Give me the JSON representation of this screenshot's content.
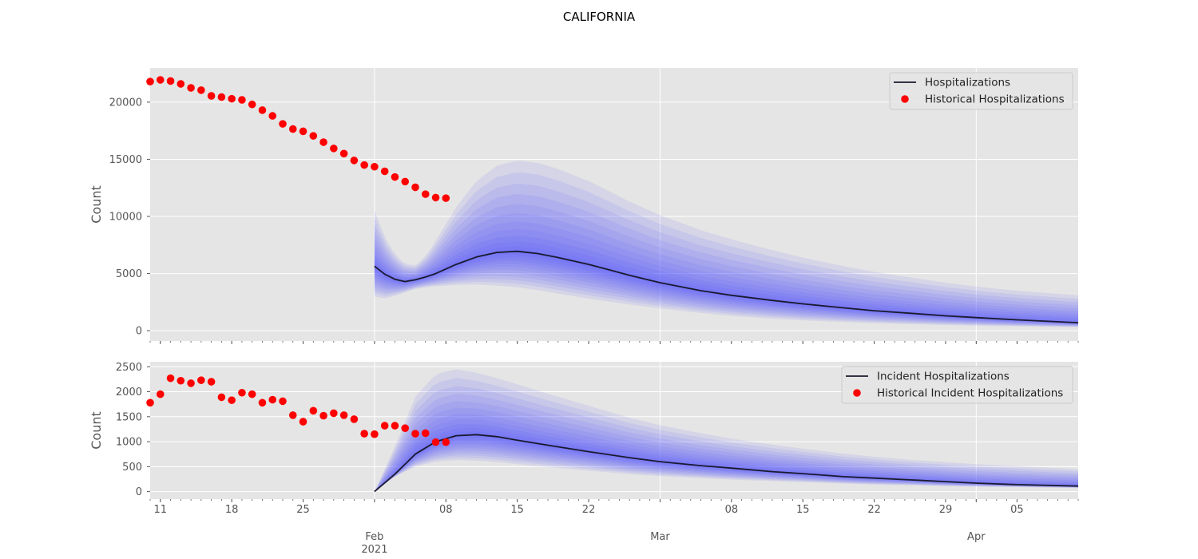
{
  "figure": {
    "title": "CALIFORNIA",
    "x_ticks": [
      {
        "date": "2021-01-11",
        "label": "11"
      },
      {
        "date": "2021-01-18",
        "label": "18"
      },
      {
        "date": "2021-01-25",
        "label": "25"
      },
      {
        "date": "2021-02-01",
        "label": "Feb",
        "sublabel": "2021"
      },
      {
        "date": "2021-02-08",
        "label": "08"
      },
      {
        "date": "2021-02-15",
        "label": "15"
      },
      {
        "date": "2021-02-22",
        "label": "22"
      },
      {
        "date": "2021-03-01",
        "label": "Mar"
      },
      {
        "date": "2021-03-08",
        "label": "08"
      },
      {
        "date": "2021-03-15",
        "label": "15"
      },
      {
        "date": "2021-03-22",
        "label": "22"
      },
      {
        "date": "2021-03-29",
        "label": "29"
      },
      {
        "date": "2021-04-01",
        "label": "Apr"
      },
      {
        "date": "2021-04-05",
        "label": "05"
      }
    ],
    "colors": {
      "panel_bg": "#e5e5e5",
      "grid": "#ffffff",
      "band": "#4d4dff",
      "median": "#1a1a2e",
      "points": "#ff0000"
    }
  },
  "chart_data": [
    {
      "type": "line",
      "ylabel": "Count",
      "xlim": [
        "2021-01-10",
        "2021-04-11"
      ],
      "ylim": [
        -900,
        23000
      ],
      "yticks": [
        0,
        5000,
        10000,
        15000,
        20000
      ],
      "grid": true,
      "legend_position": "top-right",
      "legend": [
        {
          "label": "Hospitalizations",
          "marker": "line"
        },
        {
          "label": "Historical Hospitalizations",
          "marker": "dot"
        }
      ],
      "historical": {
        "name": "Historical Hospitalizations",
        "x": [
          "2021-01-10",
          "2021-01-11",
          "2021-01-12",
          "2021-01-13",
          "2021-01-14",
          "2021-01-15",
          "2021-01-16",
          "2021-01-17",
          "2021-01-18",
          "2021-01-19",
          "2021-01-20",
          "2021-01-21",
          "2021-01-22",
          "2021-01-23",
          "2021-01-24",
          "2021-01-25",
          "2021-01-26",
          "2021-01-27",
          "2021-01-28",
          "2021-01-29",
          "2021-01-30",
          "2021-01-31",
          "2021-02-01",
          "2021-02-02",
          "2021-02-03",
          "2021-02-04",
          "2021-02-05",
          "2021-02-06",
          "2021-02-07",
          "2021-02-08"
        ],
        "y": [
          21800,
          21950,
          21850,
          21600,
          21250,
          21050,
          20550,
          20450,
          20300,
          20200,
          19800,
          19300,
          18800,
          18100,
          17650,
          17450,
          17050,
          16500,
          15950,
          15500,
          14900,
          14500,
          14350,
          13950,
          13450,
          13050,
          12550,
          11950,
          11650,
          11600
        ]
      },
      "forecast": {
        "name": "Hospitalizations",
        "x": [
          "2021-02-01",
          "2021-02-02",
          "2021-02-03",
          "2021-02-04",
          "2021-02-05",
          "2021-02-06",
          "2021-02-07",
          "2021-02-09",
          "2021-02-11",
          "2021-02-13",
          "2021-02-15",
          "2021-02-17",
          "2021-02-19",
          "2021-02-22",
          "2021-02-26",
          "2021-03-01",
          "2021-03-05",
          "2021-03-08",
          "2021-03-12",
          "2021-03-15",
          "2021-03-19",
          "2021-03-22",
          "2021-03-26",
          "2021-03-29",
          "2021-04-01",
          "2021-04-05",
          "2021-04-11"
        ],
        "median": [
          5650,
          4950,
          4500,
          4300,
          4450,
          4700,
          5000,
          5800,
          6450,
          6850,
          6950,
          6750,
          6400,
          5800,
          4850,
          4200,
          3500,
          3100,
          2650,
          2350,
          2000,
          1750,
          1500,
          1300,
          1150,
          950,
          700
        ],
        "lower_90": [
          3000,
          2800,
          3050,
          3350,
          3650,
          3800,
          3900,
          4000,
          4050,
          3950,
          3800,
          3550,
          3250,
          2800,
          2300,
          1950,
          1550,
          1300,
          1050,
          900,
          760,
          660,
          560,
          500,
          440,
          380,
          320
        ],
        "upper_90": [
          10500,
          8200,
          6700,
          5850,
          5700,
          6500,
          7850,
          10800,
          13100,
          14450,
          14900,
          14700,
          14150,
          13100,
          11300,
          10100,
          8800,
          8000,
          7050,
          6400,
          5650,
          5150,
          4600,
          4200,
          3850,
          3500,
          3100
        ]
      }
    },
    {
      "type": "line",
      "ylabel": "Count",
      "xlim": [
        "2021-01-10",
        "2021-04-11"
      ],
      "ylim": [
        -150,
        2600
      ],
      "yticks": [
        0,
        500,
        1000,
        1500,
        2000,
        2500
      ],
      "grid": true,
      "legend_position": "top-right",
      "legend": [
        {
          "label": "Incident Hospitalizations",
          "marker": "line"
        },
        {
          "label": "Historical Incident Hospitalizations",
          "marker": "dot"
        }
      ],
      "historical": {
        "name": "Historical Incident Hospitalizations",
        "x": [
          "2021-01-10",
          "2021-01-11",
          "2021-01-12",
          "2021-01-13",
          "2021-01-14",
          "2021-01-15",
          "2021-01-16",
          "2021-01-17",
          "2021-01-18",
          "2021-01-19",
          "2021-01-20",
          "2021-01-21",
          "2021-01-22",
          "2021-01-23",
          "2021-01-24",
          "2021-01-25",
          "2021-01-26",
          "2021-01-27",
          "2021-01-28",
          "2021-01-29",
          "2021-01-30",
          "2021-01-31",
          "2021-02-01",
          "2021-02-02",
          "2021-02-03",
          "2021-02-04",
          "2021-02-05",
          "2021-02-06",
          "2021-02-07",
          "2021-02-08"
        ],
        "y": [
          1780,
          1950,
          2270,
          2220,
          2170,
          2230,
          2200,
          1890,
          1830,
          1980,
          1950,
          1780,
          1840,
          1810,
          1530,
          1400,
          1620,
          1520,
          1570,
          1530,
          1450,
          1160,
          1150,
          1320,
          1320,
          1270,
          1160,
          1170,
          990,
          990
        ]
      },
      "forecast": {
        "name": "Incident Hospitalizations",
        "x": [
          "2021-02-01",
          "2021-02-03",
          "2021-02-05",
          "2021-02-07",
          "2021-02-09",
          "2021-02-11",
          "2021-02-13",
          "2021-02-15",
          "2021-02-18",
          "2021-02-22",
          "2021-02-26",
          "2021-03-01",
          "2021-03-05",
          "2021-03-08",
          "2021-03-12",
          "2021-03-15",
          "2021-03-19",
          "2021-03-22",
          "2021-03-26",
          "2021-03-29",
          "2021-04-01",
          "2021-04-05",
          "2021-04-11"
        ],
        "median": [
          0,
          350,
          750,
          1000,
          1120,
          1140,
          1100,
          1030,
          930,
          800,
          680,
          600,
          520,
          470,
          400,
          360,
          300,
          270,
          230,
          200,
          170,
          140,
          110
        ],
        "lower_90": [
          0,
          300,
          500,
          600,
          630,
          620,
          590,
          550,
          490,
          420,
          350,
          310,
          270,
          240,
          210,
          190,
          160,
          140,
          125,
          110,
          100,
          90,
          75
        ],
        "upper_90": [
          0,
          900,
          1900,
          2350,
          2450,
          2380,
          2270,
          2150,
          1960,
          1720,
          1480,
          1330,
          1170,
          1060,
          940,
          860,
          760,
          700,
          630,
          590,
          550,
          510,
          450
        ]
      }
    }
  ]
}
